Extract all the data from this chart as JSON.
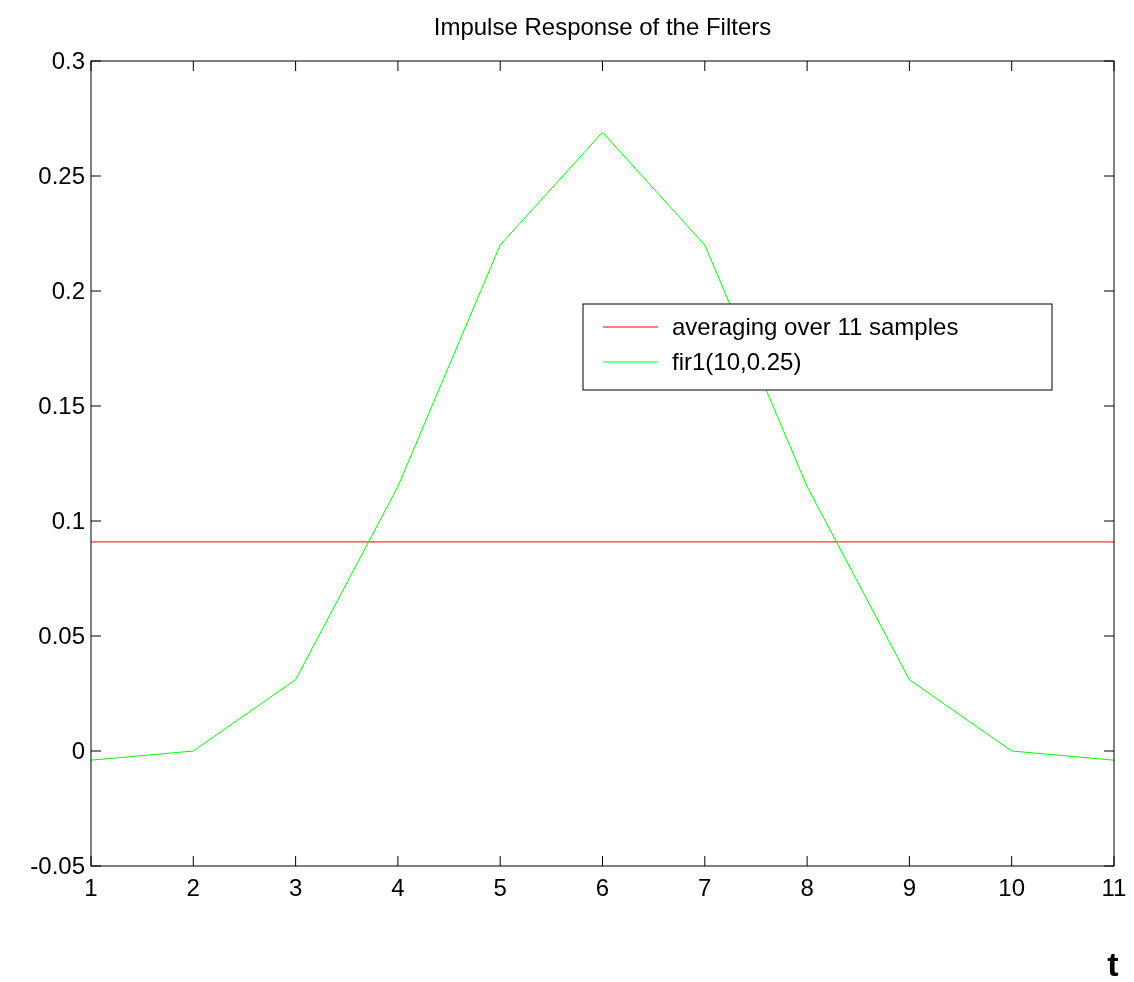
{
  "chart_data": {
    "type": "line",
    "title": "Impulse Response of the Filters",
    "xlabel": "t",
    "x": [
      1,
      2,
      3,
      4,
      5,
      6,
      7,
      8,
      9,
      10,
      11
    ],
    "series": [
      {
        "name": "averaging over 11 samples",
        "color": "#ff0000",
        "values": [
          0.0909,
          0.0909,
          0.0909,
          0.0909,
          0.0909,
          0.0909,
          0.0909,
          0.0909,
          0.0909,
          0.0909,
          0.0909
        ]
      },
      {
        "name": "fir1(10,0.25)",
        "color": "#00ff00",
        "values": [
          -0.004,
          0,
          0.031,
          0.115,
          0.22,
          0.269,
          0.22,
          0.115,
          0.031,
          0,
          -0.004
        ]
      }
    ],
    "xlim": [
      1,
      11
    ],
    "xticks": [
      1,
      2,
      3,
      4,
      5,
      6,
      7,
      8,
      9,
      10,
      11
    ],
    "ylim": [
      -0.05,
      0.3
    ],
    "yticks": [
      -0.05,
      0,
      0.05,
      0.1,
      0.15,
      0.2,
      0.25,
      0.3
    ],
    "grid": false,
    "legend": "right",
    "marker": "none",
    "line_style": "solid"
  }
}
